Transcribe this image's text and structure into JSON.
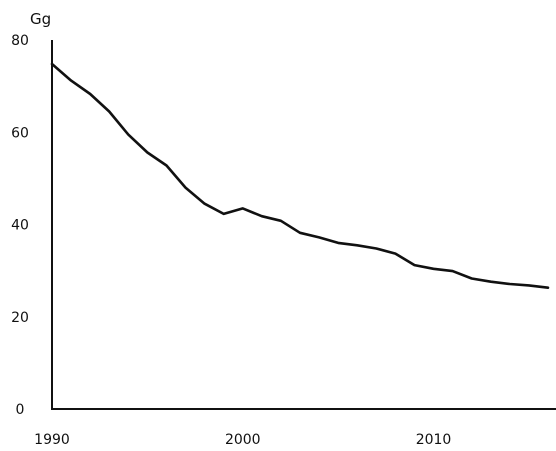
{
  "chart_data": {
    "type": "line",
    "title": "",
    "xlabel": "",
    "ylabel": "Gg",
    "xlim": [
      1990,
      2016
    ],
    "ylim": [
      0,
      80
    ],
    "x_ticks": [
      1990,
      2000,
      2010
    ],
    "y_ticks": [
      0,
      20,
      40,
      60,
      80
    ],
    "grid": false,
    "legend": "none",
    "series": [
      {
        "color": "#111111",
        "x": [
          1990,
          1991,
          1992,
          1993,
          1994,
          1995,
          1996,
          1997,
          1998,
          1999,
          2000,
          2001,
          2002,
          2003,
          2004,
          2005,
          2006,
          2007,
          2008,
          2009,
          2010,
          2011,
          2012,
          2013,
          2014,
          2015,
          2016
        ],
        "values": [
          74.8,
          71.2,
          68.3,
          64.5,
          59.5,
          55.6,
          52.8,
          48.0,
          44.5,
          42.3,
          43.5,
          41.8,
          40.8,
          38.2,
          37.2,
          36.0,
          35.5,
          34.8,
          33.7,
          31.2,
          30.4,
          29.9,
          28.3,
          27.6,
          27.1,
          26.8,
          26.3
        ]
      }
    ]
  }
}
